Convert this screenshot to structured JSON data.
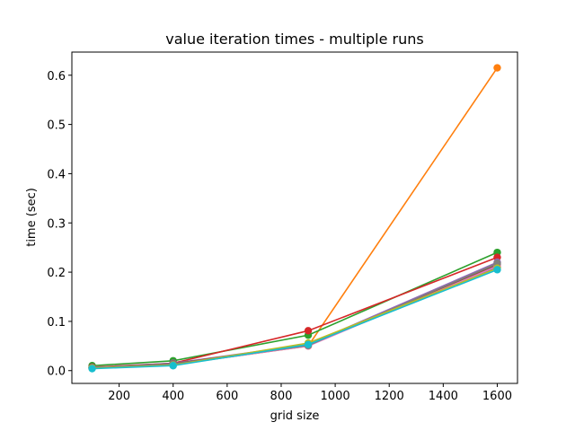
{
  "chart_data": {
    "type": "line",
    "title": "value iteration times - multiple runs",
    "xlabel": "grid size",
    "ylabel": "time (sec)",
    "x": [
      100,
      400,
      900,
      1600
    ],
    "xlim": [
      25,
      1675
    ],
    "ylim": [
      -0.026,
      0.647
    ],
    "xticks": [
      200,
      400,
      600,
      800,
      1000,
      1200,
      1400,
      1600
    ],
    "xtick_labels": [
      "200",
      "400",
      "600",
      "800",
      "1000",
      "1200",
      "1400",
      "1600"
    ],
    "yticks": [
      0.0,
      0.1,
      0.2,
      0.3,
      0.4,
      0.5,
      0.6
    ],
    "ytick_labels": [
      "0.0",
      "0.1",
      "0.2",
      "0.3",
      "0.4",
      "0.5",
      "0.6"
    ],
    "grid": false,
    "legend": "none",
    "series": [
      {
        "color": "#1f77b4",
        "values": [
          0.006,
          0.013,
          0.052,
          0.21
        ]
      },
      {
        "color": "#ff7f0e",
        "values": [
          0.005,
          0.012,
          0.05,
          0.615
        ]
      },
      {
        "color": "#2ca02c",
        "values": [
          0.01,
          0.02,
          0.072,
          0.24
        ]
      },
      {
        "color": "#d62728",
        "values": [
          0.007,
          0.015,
          0.081,
          0.23
        ]
      },
      {
        "color": "#9467bd",
        "values": [
          0.006,
          0.015,
          0.053,
          0.22
        ]
      },
      {
        "color": "#8c564b",
        "values": [
          0.006,
          0.014,
          0.052,
          0.215
        ]
      },
      {
        "color": "#e377c2",
        "values": [
          0.005,
          0.012,
          0.05,
          0.212
        ]
      },
      {
        "color": "#7f7f7f",
        "values": [
          0.006,
          0.013,
          0.051,
          0.218
        ]
      },
      {
        "color": "#bcbd22",
        "values": [
          0.005,
          0.011,
          0.056,
          0.208
        ]
      },
      {
        "color": "#17becf",
        "values": [
          0.004,
          0.01,
          0.053,
          0.205
        ]
      }
    ]
  }
}
